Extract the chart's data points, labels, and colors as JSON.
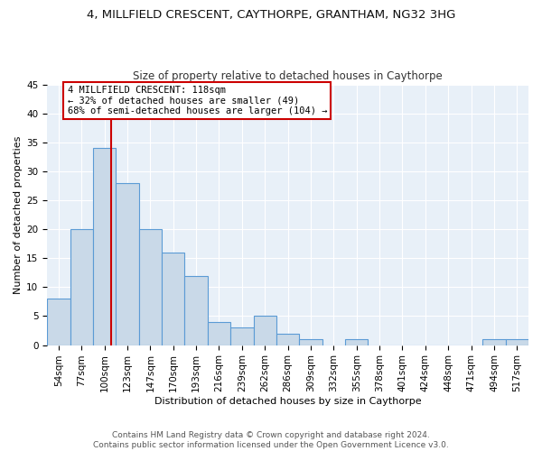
{
  "title1": "4, MILLFIELD CRESCENT, CAYTHORPE, GRANTHAM, NG32 3HG",
  "title2": "Size of property relative to detached houses in Caythorpe",
  "xlabel": "Distribution of detached houses by size in Caythorpe",
  "ylabel": "Number of detached properties",
  "bar_labels": [
    "54sqm",
    "77sqm",
    "100sqm",
    "123sqm",
    "147sqm",
    "170sqm",
    "193sqm",
    "216sqm",
    "239sqm",
    "262sqm",
    "286sqm",
    "309sqm",
    "332sqm",
    "355sqm",
    "378sqm",
    "401sqm",
    "424sqm",
    "448sqm",
    "471sqm",
    "494sqm",
    "517sqm"
  ],
  "bar_values": [
    8,
    20,
    34,
    28,
    20,
    16,
    12,
    4,
    3,
    5,
    2,
    1,
    0,
    1,
    0,
    0,
    0,
    0,
    0,
    1,
    1
  ],
  "bar_color": "#c9d9e8",
  "bar_edge_color": "#5b9bd5",
  "annotation_line1": "4 MILLFIELD CRESCENT: 118sqm",
  "annotation_line2": "← 32% of detached houses are smaller (49)",
  "annotation_line3": "68% of semi-detached houses are larger (104) →",
  "annotation_box_color": "#ffffff",
  "annotation_box_edge": "#cc0000",
  "red_line_color": "#cc0000",
  "ylim": [
    0,
    45
  ],
  "yticks": [
    0,
    5,
    10,
    15,
    20,
    25,
    30,
    35,
    40,
    45
  ],
  "footer_line1": "Contains HM Land Registry data © Crown copyright and database right 2024.",
  "footer_line2": "Contains public sector information licensed under the Open Government Licence v3.0.",
  "plot_bg_color": "#e8f0f8",
  "title1_fontsize": 9.5,
  "title2_fontsize": 8.5,
  "xlabel_fontsize": 8,
  "ylabel_fontsize": 8,
  "footer_fontsize": 6.5,
  "tick_fontsize": 7.5,
  "annot_fontsize": 7.5
}
